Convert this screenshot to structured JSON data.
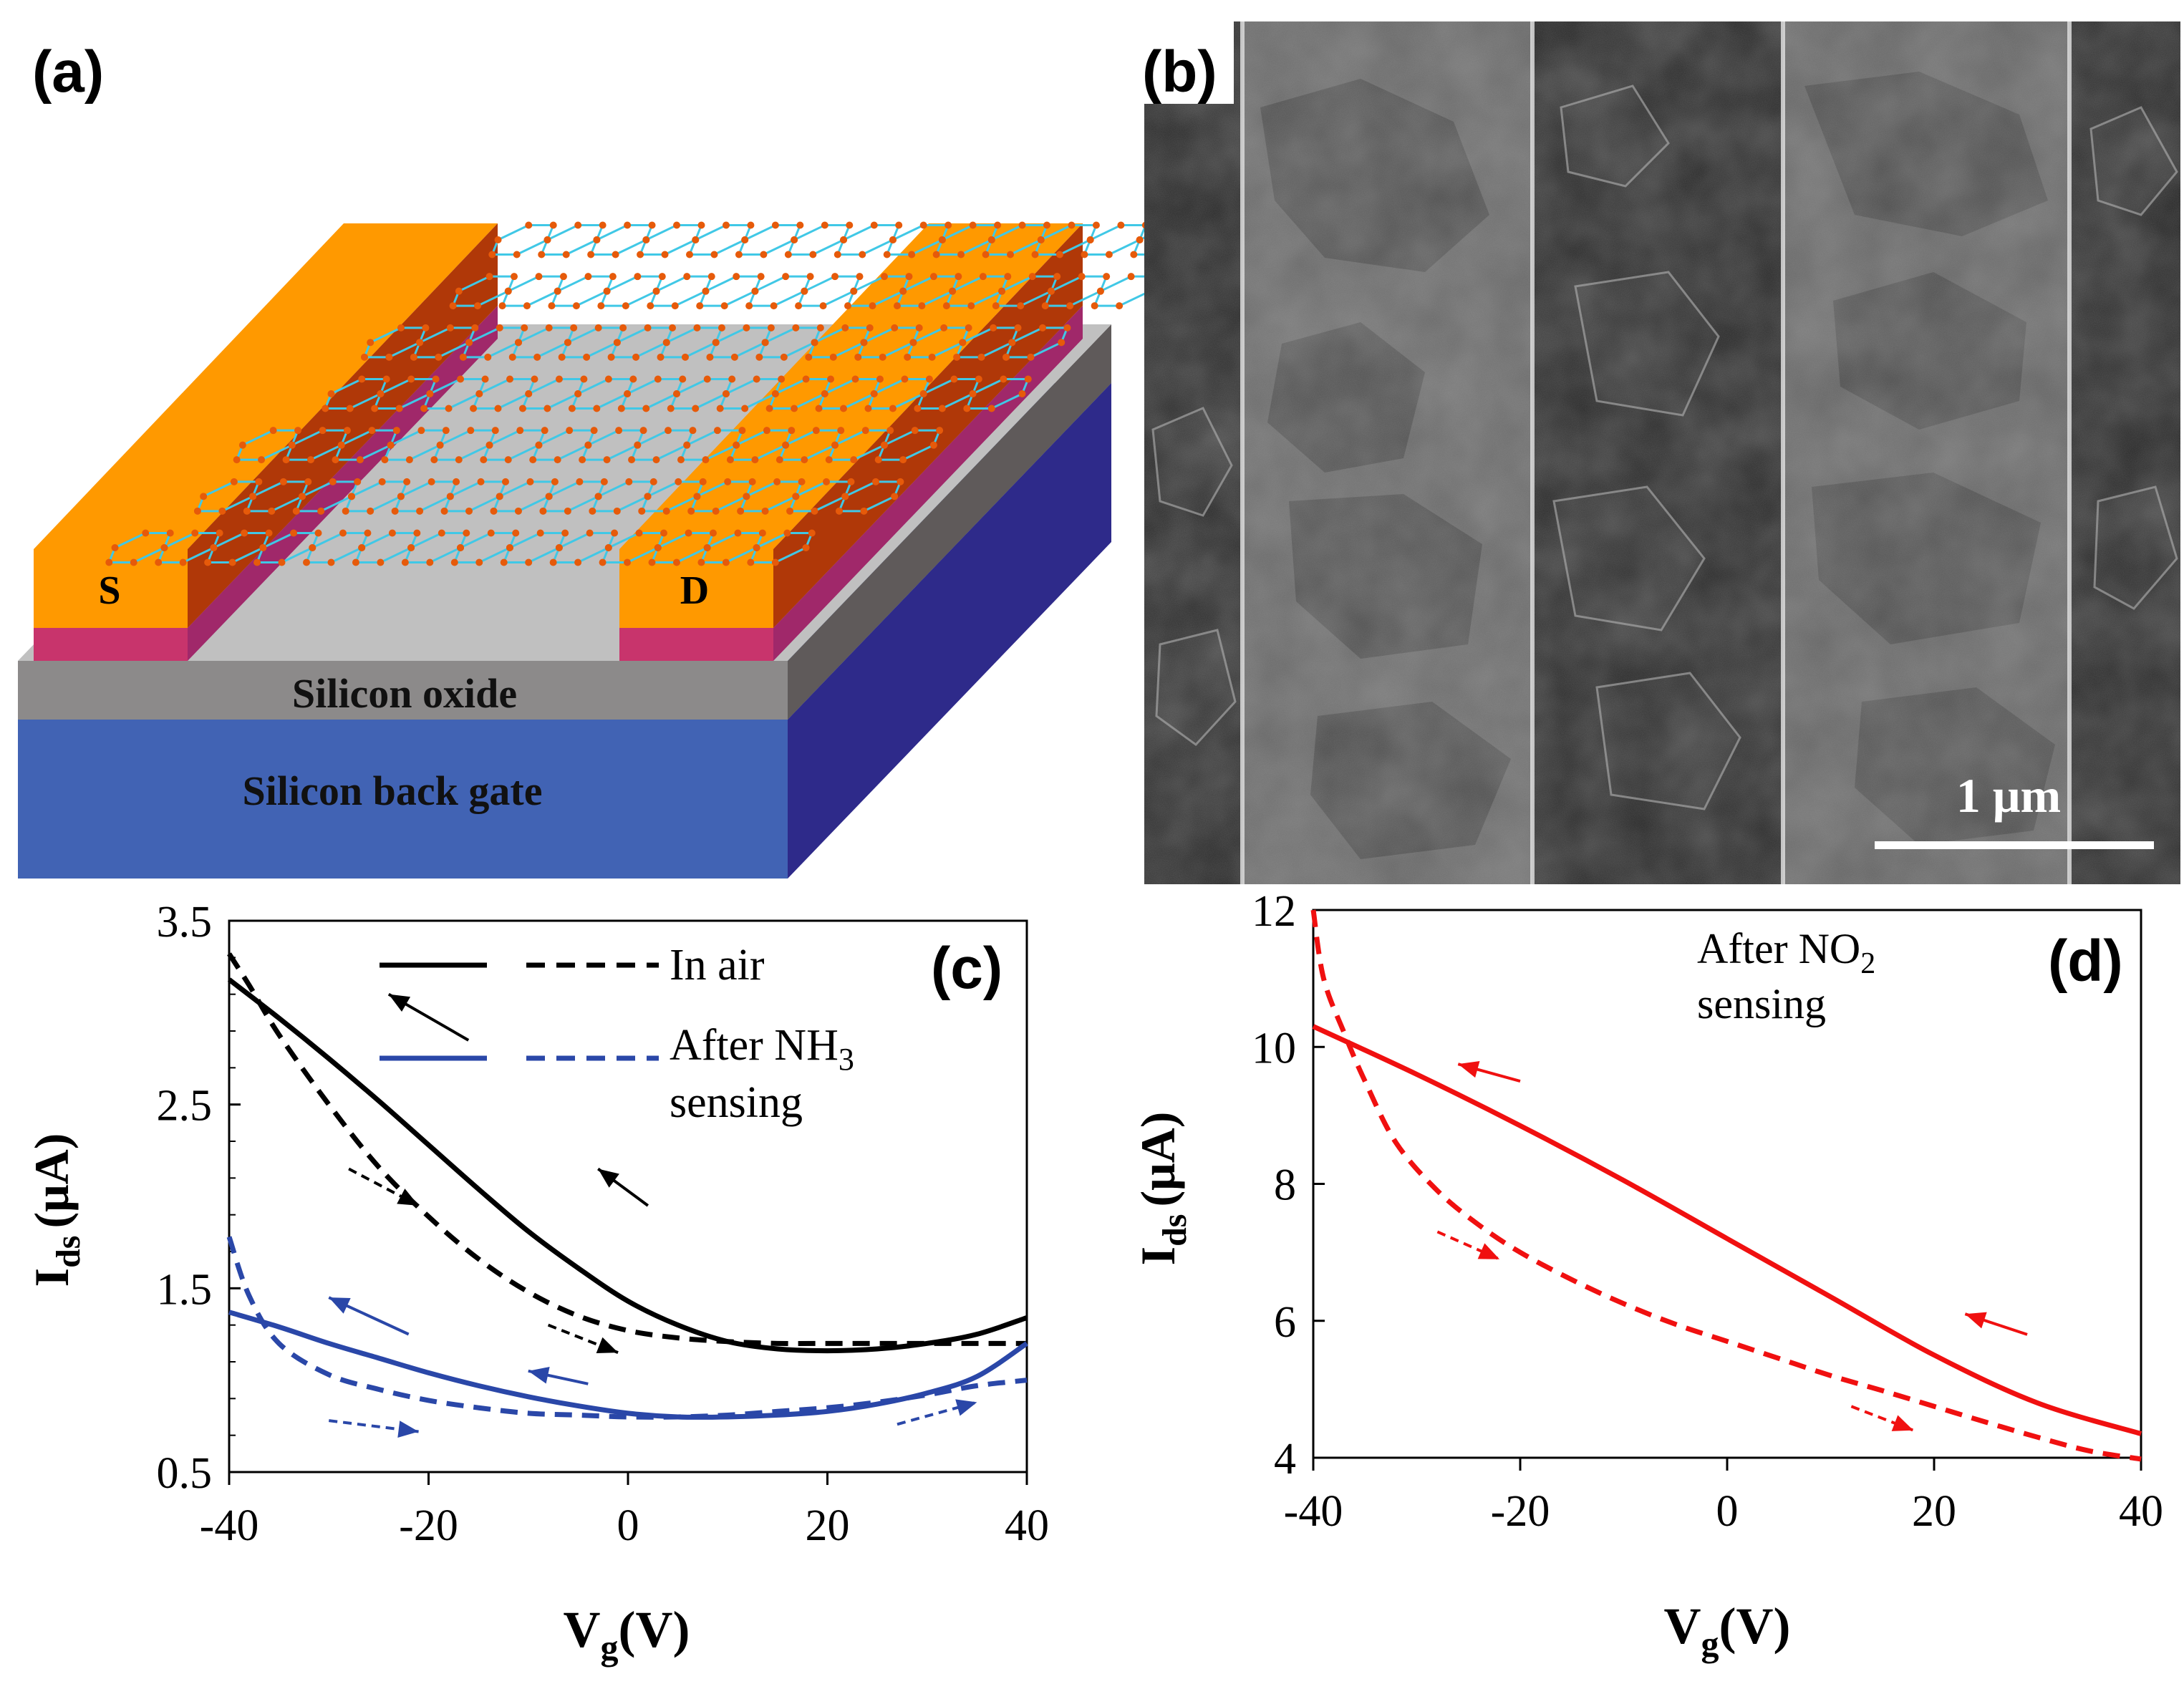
{
  "colors": {
    "gold": "#FF9900",
    "gold_side": "#B03808",
    "adhesion": "#C8346C",
    "adhesion_side": "#A0286A",
    "oxide_top": "#C0C0C0",
    "oxide_front": "#8C8A8A",
    "oxide_side": "#5F5A5A",
    "gate_front": "#4163B4",
    "gate_side": "#2E2A8A",
    "bond": "#40C8E6",
    "atom": "#E65A0A",
    "black_curve": "#000000",
    "blue_curve": "#2A47A8",
    "red_curve": "#F01010"
  },
  "panel_a": {
    "label": "(a)",
    "source_label": "S",
    "drain_label": "D",
    "oxide_label": "Silicon oxide",
    "gate_label": "Silicon back gate"
  },
  "panel_b": {
    "label": "(b)",
    "scale_bar_label": "1 μm"
  },
  "chart_data": [
    {
      "panel": "(c)",
      "type": "line",
      "xlabel": "V",
      "xlabel_sub": "g",
      "xlabel_unit": "(V)",
      "ylabel": "I",
      "ylabel_sub": "ds",
      "ylabel_unit": "(μA)",
      "xlim": [
        -40,
        40
      ],
      "ylim": [
        0.5,
        3.5
      ],
      "xticks": [
        -40,
        -20,
        0,
        20,
        40
      ],
      "xtick_labels": [
        "-40",
        "-20",
        "0",
        "20",
        "40"
      ],
      "yticks": [
        0.5,
        1.5,
        2.5,
        3.5
      ],
      "ytick_labels": [
        "0.5",
        "1.5",
        "2.5",
        "3.5"
      ],
      "legend": [
        {
          "text": "In air",
          "color": "#000000"
        },
        {
          "text": "After NH",
          "sub": "3",
          "text2": "sensing",
          "color": "#2A47A8"
        }
      ],
      "series": [
        {
          "name": "In air (backward sweep)",
          "color": "#000000",
          "style": "solid",
          "x": [
            -40,
            -35,
            -30,
            -25,
            -20,
            -15,
            -10,
            -5,
            0,
            5,
            10,
            15,
            20,
            25,
            30,
            35,
            40
          ],
          "y": [
            3.18,
            2.97,
            2.75,
            2.52,
            2.28,
            2.04,
            1.81,
            1.61,
            1.43,
            1.3,
            1.21,
            1.17,
            1.16,
            1.17,
            1.2,
            1.25,
            1.34
          ]
        },
        {
          "name": "In air (forward sweep)",
          "color": "#000000",
          "style": "dashed",
          "x": [
            -40,
            -38,
            -35,
            -30,
            -25,
            -20,
            -15,
            -10,
            -5,
            0,
            5,
            10,
            15,
            20,
            25,
            30,
            35,
            40
          ],
          "y": [
            3.32,
            3.15,
            2.88,
            2.5,
            2.16,
            1.89,
            1.66,
            1.48,
            1.35,
            1.27,
            1.23,
            1.21,
            1.2,
            1.2,
            1.2,
            1.2,
            1.2,
            1.2
          ]
        },
        {
          "name": "After NH3 sensing (backward sweep)",
          "color": "#2A47A8",
          "style": "solid",
          "x": [
            -40,
            -35,
            -30,
            -25,
            -20,
            -15,
            -10,
            -5,
            0,
            5,
            10,
            15,
            20,
            25,
            30,
            35,
            40
          ],
          "y": [
            1.37,
            1.29,
            1.2,
            1.12,
            1.04,
            0.97,
            0.91,
            0.86,
            0.82,
            0.8,
            0.8,
            0.81,
            0.83,
            0.87,
            0.93,
            1.02,
            1.2
          ]
        },
        {
          "name": "After NH3 sensing (forward sweep)",
          "color": "#2A47A8",
          "style": "dashed",
          "x": [
            -40,
            -38,
            -35,
            -30,
            -25,
            -20,
            -15,
            -10,
            -5,
            0,
            5,
            10,
            15,
            20,
            25,
            30,
            35,
            40
          ],
          "y": [
            1.78,
            1.46,
            1.2,
            1.03,
            0.95,
            0.89,
            0.85,
            0.82,
            0.81,
            0.8,
            0.8,
            0.81,
            0.83,
            0.85,
            0.88,
            0.92,
            0.97,
            1.0
          ]
        }
      ]
    },
    {
      "panel": "(d)",
      "type": "line",
      "xlabel": "V",
      "xlabel_sub": "g",
      "xlabel_unit": "(V)",
      "ylabel": "I",
      "ylabel_sub": "ds",
      "ylabel_unit": "(μA)",
      "xlim": [
        -40,
        40
      ],
      "ylim": [
        4,
        12
      ],
      "xticks": [
        -40,
        -20,
        0,
        20,
        40
      ],
      "xtick_labels": [
        "-40",
        "-20",
        "0",
        "20",
        "40"
      ],
      "yticks": [
        4,
        6,
        8,
        10,
        12
      ],
      "ytick_labels": [
        "4",
        "6",
        "8",
        "10",
        "12"
      ],
      "annotation": {
        "text": "After NO",
        "sub": "2",
        "text2": "sensing"
      },
      "series": [
        {
          "name": "After NO2 sensing (backward sweep)",
          "color": "#F01010",
          "style": "solid",
          "x": [
            -40,
            -30,
            -20,
            -10,
            0,
            10,
            20,
            30,
            40
          ],
          "y": [
            10.3,
            9.6,
            8.85,
            8.05,
            7.2,
            6.35,
            5.5,
            4.8,
            4.35
          ]
        },
        {
          "name": "After NO2 sensing (forward sweep)",
          "color": "#F01010",
          "style": "dashed",
          "x": [
            -40,
            -39,
            -37,
            -35,
            -32,
            -28,
            -24,
            -20,
            -15,
            -10,
            -5,
            0,
            5,
            10,
            15,
            20,
            25,
            30,
            35,
            40
          ],
          "y": [
            12.0,
            11.0,
            10.2,
            9.5,
            8.6,
            7.9,
            7.4,
            7.0,
            6.6,
            6.25,
            5.95,
            5.7,
            5.45,
            5.2,
            4.98,
            4.75,
            4.52,
            4.3,
            4.1,
            3.98
          ]
        }
      ]
    }
  ]
}
